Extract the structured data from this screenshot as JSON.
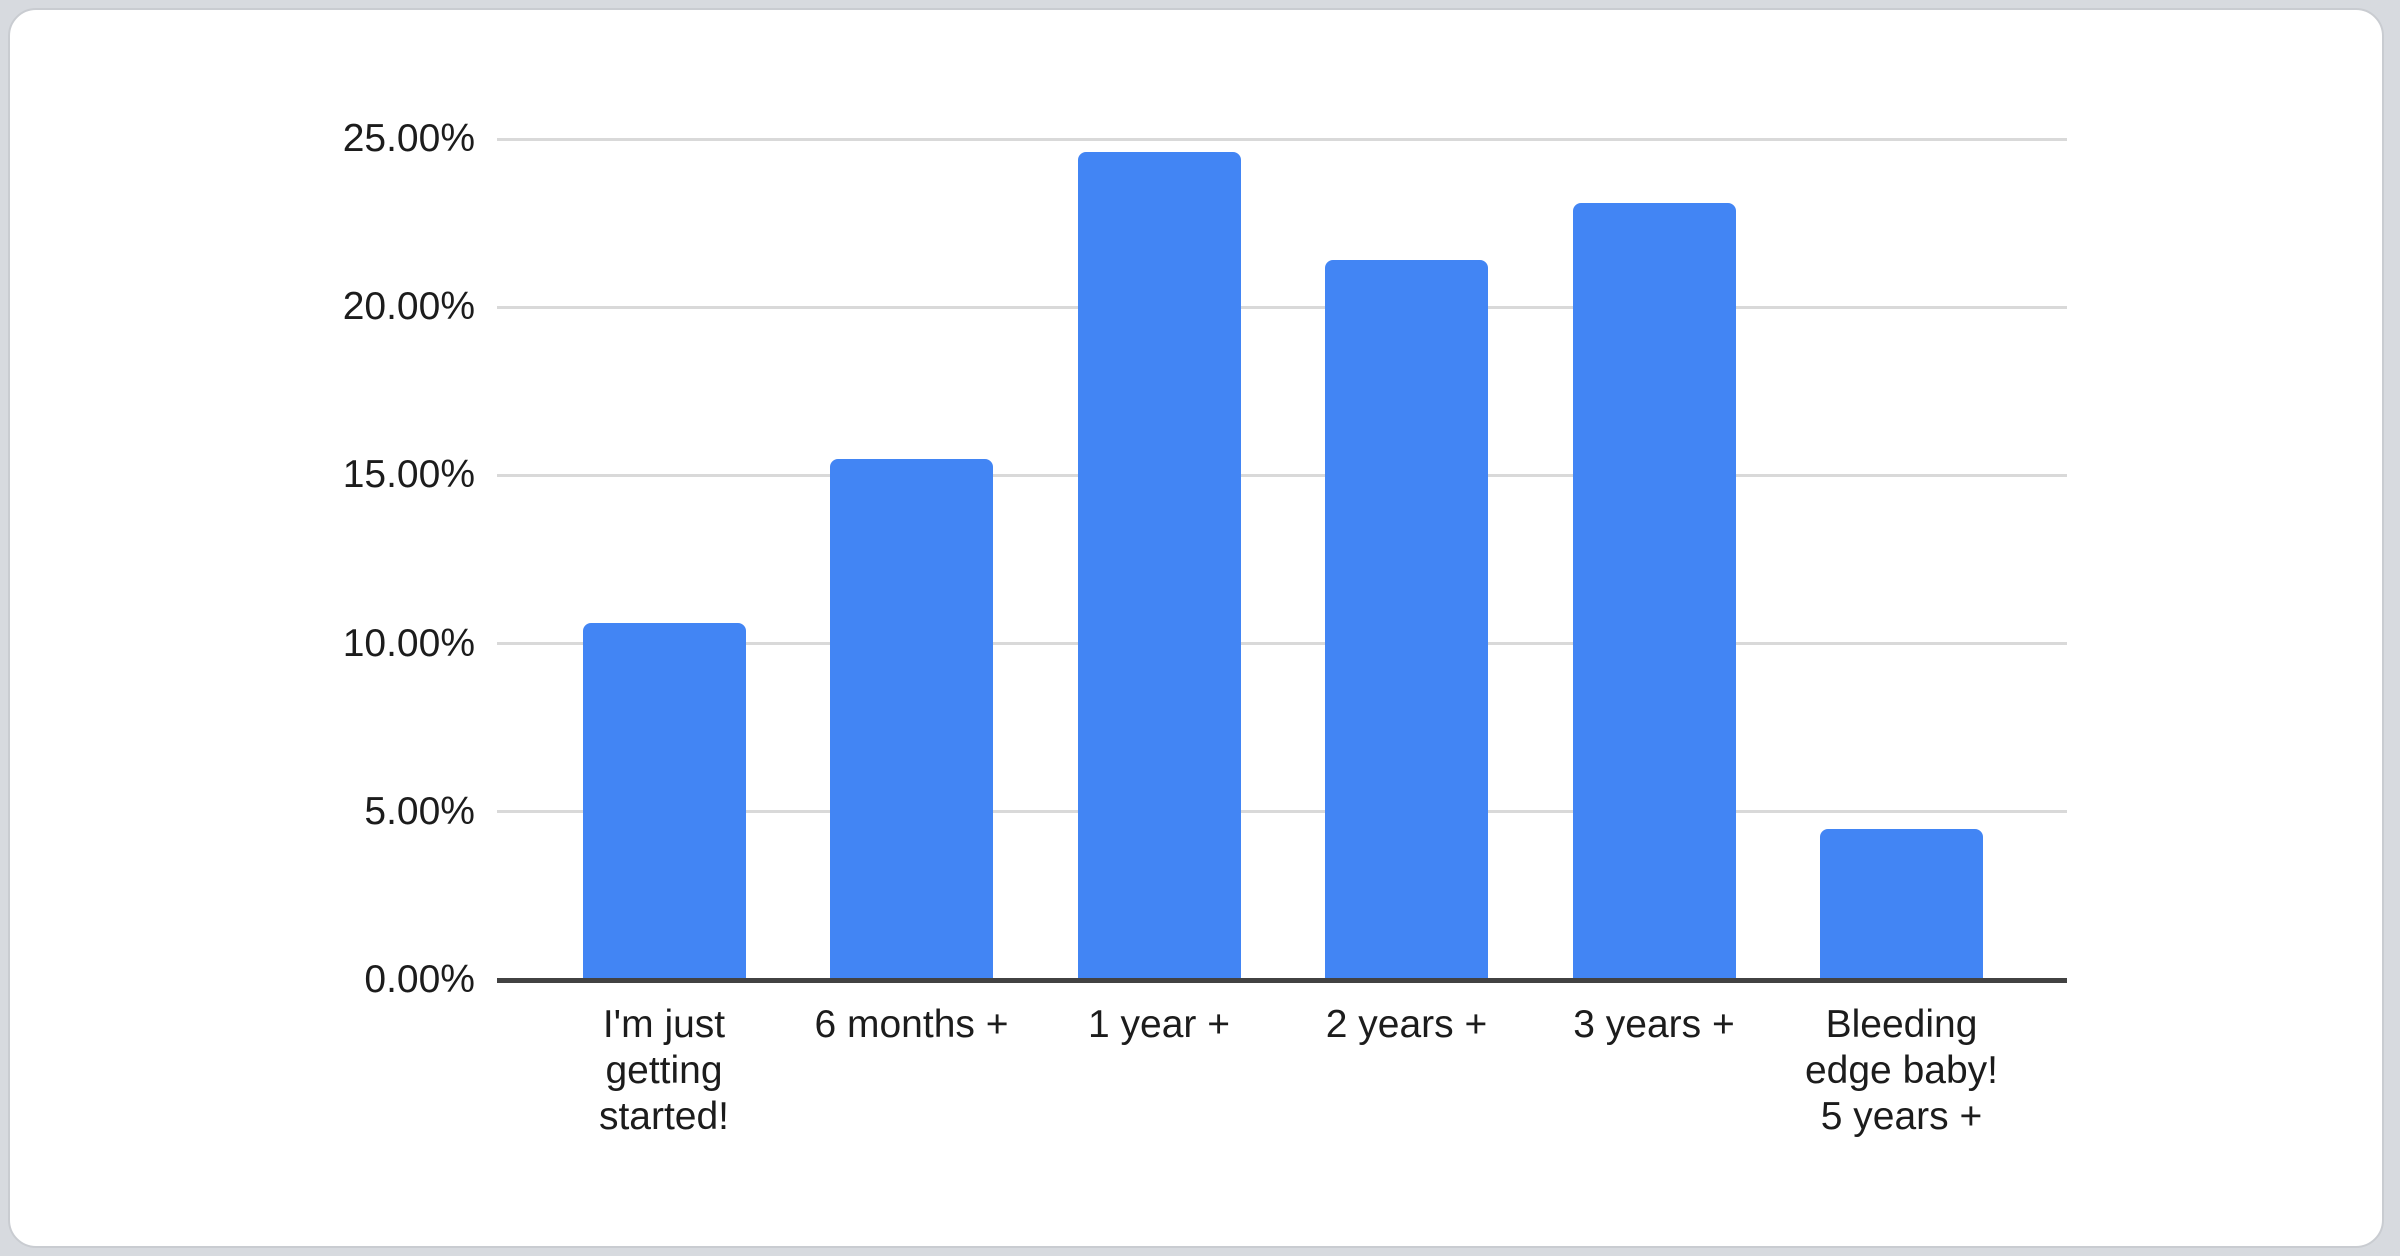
{
  "page": {
    "background_color": "#d7dadf",
    "card_background_color": "#ffffff",
    "card_border_color": "#c9ccd1"
  },
  "chart_data": {
    "type": "bar",
    "title": "",
    "xlabel": "",
    "ylabel": "",
    "categories": [
      "I'm just getting started!",
      "6 months +",
      "1 year +",
      "2 years +",
      "3 years +",
      "Bleeding edge baby! 5 years +"
    ],
    "category_display_lines": [
      "I'm just\ngetting\nstarted!",
      "6 months +",
      "1 year +",
      "2 years +",
      "3 years +",
      "Bleeding\nedge baby!\n5 years +"
    ],
    "values": [
      10.6,
      15.5,
      24.6,
      21.4,
      23.1,
      4.5
    ],
    "value_unit": "%",
    "ylim": [
      0,
      25
    ],
    "y_ticks": [
      {
        "value": 0,
        "label": "0.00%"
      },
      {
        "value": 5,
        "label": "5.00%"
      },
      {
        "value": 10,
        "label": "10.00%"
      },
      {
        "value": 15,
        "label": "15.00%"
      },
      {
        "value": 20,
        "label": "20.00%"
      },
      {
        "value": 25,
        "label": "25.00%"
      }
    ],
    "grid": true,
    "legend_position": "none",
    "bar_color": "#4285f4",
    "gridline_color": "#d9d9d9",
    "baseline_color": "#424242",
    "label_color": "#1c1c1c"
  }
}
